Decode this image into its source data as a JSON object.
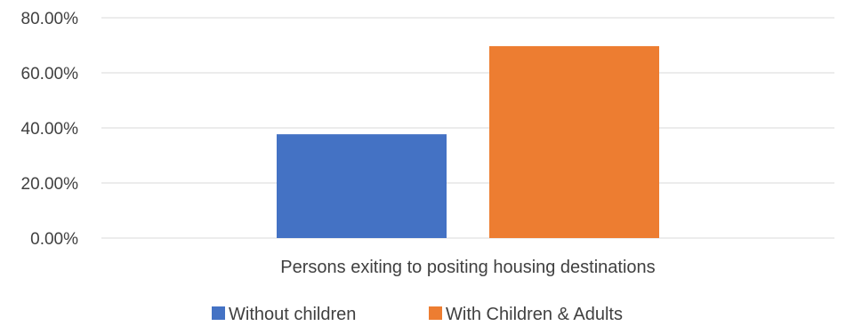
{
  "chart_data": {
    "type": "bar",
    "title": "",
    "xlabel": "",
    "ylabel": "",
    "categories": [
      "Persons exiting to positing housing destinations"
    ],
    "series": [
      {
        "name": "Without children",
        "values": [
          37.7
        ],
        "color": "#4472c4"
      },
      {
        "name": "With Children & Adults",
        "values": [
          69.7
        ],
        "color": "#ed7d31"
      }
    ],
    "ylim": [
      0,
      80
    ],
    "yticks": [
      0,
      20,
      40,
      60,
      80
    ],
    "ytick_labels": [
      "0.00%",
      "20.00%",
      "40.00%",
      "60.00%",
      "80.00%"
    ],
    "grid": true,
    "legend_position": "bottom"
  }
}
